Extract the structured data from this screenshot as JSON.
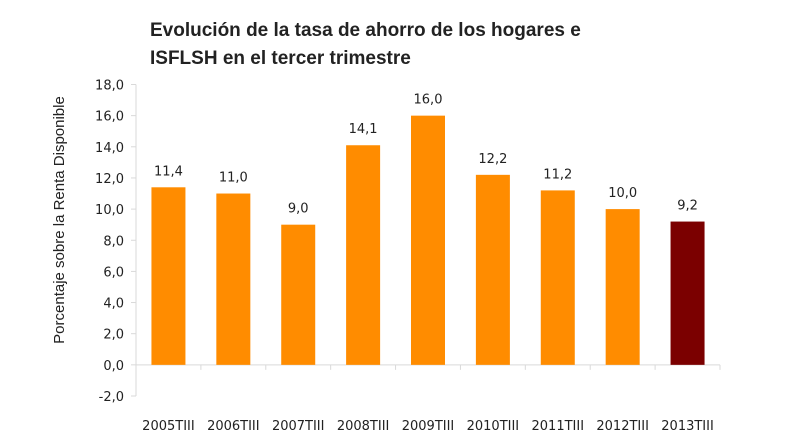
{
  "chart_data": {
    "type": "bar",
    "title_lines": [
      "Evolución de la tasa de ahorro de los hogares e",
      "ISFLSH en el tercer trimestre"
    ],
    "xlabel": "",
    "ylabel": "Porcentaje sobre la Renta Disponible",
    "ylim": [
      -2,
      18
    ],
    "yticks": [
      "18,0",
      "16,0",
      "14,0",
      "12,0",
      "10,0",
      "8,0",
      "6,0",
      "4,0",
      "2,0",
      "0,0",
      "-2,0"
    ],
    "ytick_values": [
      18,
      16,
      14,
      12,
      10,
      8,
      6,
      4,
      2,
      0,
      -2
    ],
    "categories": [
      "2005TIII",
      "2006TIII",
      "2007TIII",
      "2008TIII",
      "2009TIII",
      "2010TIII",
      "2011TIII",
      "2012TIII",
      "2013TIII"
    ],
    "values": [
      11.4,
      11.0,
      9.0,
      14.1,
      16.0,
      12.2,
      11.2,
      10.0,
      9.2
    ],
    "data_labels": [
      "11,4",
      "11,0",
      "9,0",
      "14,1",
      "16,0",
      "12,2",
      "11,2",
      "10,0",
      "9,2"
    ],
    "colors": [
      "#FF8C00",
      "#FF8C00",
      "#FF8C00",
      "#FF8C00",
      "#FF8C00",
      "#FF8C00",
      "#FF8C00",
      "#FF8C00",
      "#7B0000"
    ],
    "grid": false,
    "legend": "none"
  }
}
